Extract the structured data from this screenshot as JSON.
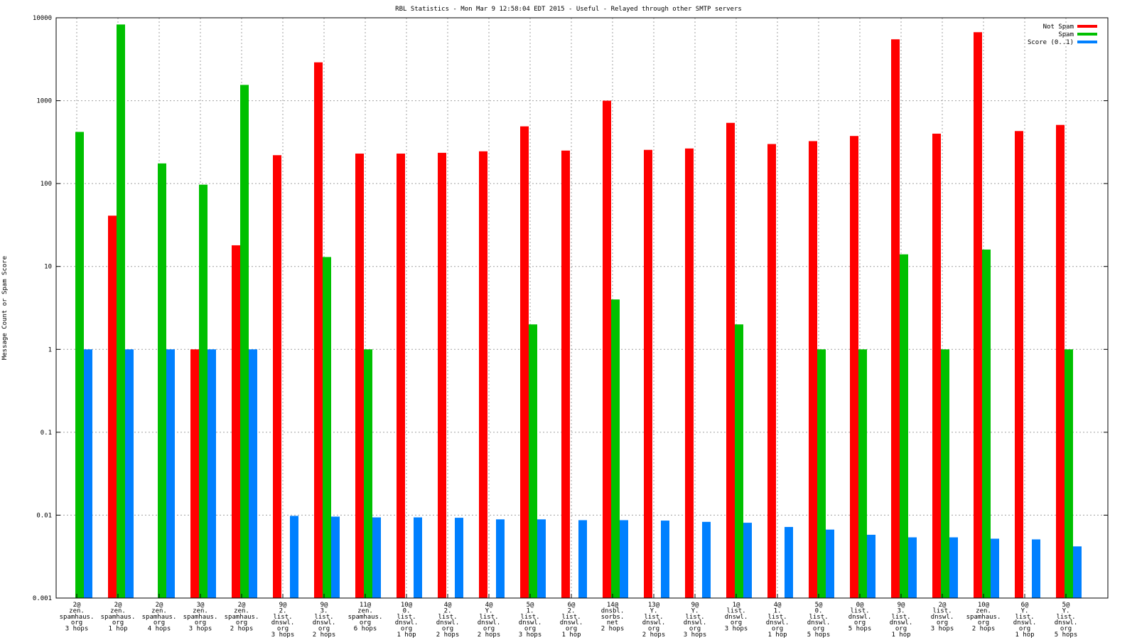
{
  "chart_data": {
    "type": "bar",
    "title": "RBL Statistics - Mon Mar  9 12:58:04 EDT 2015 - Useful - Relayed through other SMTP servers",
    "xlabel": "",
    "ylabel": "Message Count or Spam Score",
    "yscale": "log",
    "ylim": [
      0.001,
      10000
    ],
    "yticks": [
      "0.001",
      "0.01",
      "0.1",
      "1",
      "10",
      "100",
      "1000",
      "10000"
    ],
    "grid": true,
    "legend_position": "top-right",
    "categories": [
      [
        "2@",
        "zen.",
        "spamhaus.",
        "org",
        "3 hops"
      ],
      [
        "2@",
        "zen.",
        "spamhaus.",
        "org",
        "1 hop"
      ],
      [
        "2@",
        "zen.",
        "spamhaus.",
        "org",
        "4 hops"
      ],
      [
        "3@",
        "zen.",
        "spamhaus.",
        "org",
        "3 hops"
      ],
      [
        "2@",
        "zen.",
        "spamhaus.",
        "org",
        "2 hops"
      ],
      [
        "9@",
        "2.",
        "list.",
        "dnswl.",
        "org",
        "3 hops"
      ],
      [
        "9@",
        "3.",
        "list.",
        "dnswl.",
        "org",
        "2 hops"
      ],
      [
        "11@",
        "zen.",
        "spamhaus.",
        "org",
        "6 hops"
      ],
      [
        "10@",
        "0.",
        "list.",
        "dnswl.",
        "org",
        "1 hop"
      ],
      [
        "4@",
        "2.",
        "list.",
        "dnswl.",
        "org",
        "2 hops"
      ],
      [
        "4@",
        "Y.",
        "list.",
        "dnswl.",
        "org",
        "2 hops"
      ],
      [
        "5@",
        "1.",
        "list.",
        "dnswl.",
        "org",
        "3 hops"
      ],
      [
        "6@",
        "2.",
        "list.",
        "dnswl.",
        "org",
        "1 hop"
      ],
      [
        "14@",
        "dnsbl.",
        "sorbs.",
        "net",
        "2 hops"
      ],
      [
        "13@",
        "Y.",
        "list.",
        "dnswl.",
        "org",
        "2 hops"
      ],
      [
        "9@",
        "Y.",
        "list.",
        "dnswl.",
        "org",
        "3 hops"
      ],
      [
        "1@",
        "list.",
        "dnswl.",
        "org",
        "3 hops"
      ],
      [
        "4@",
        "1.",
        "list.",
        "dnswl.",
        "org",
        "1 hop"
      ],
      [
        "5@",
        "0.",
        "list.",
        "dnswl.",
        "org",
        "5 hops"
      ],
      [
        "0@",
        "list.",
        "dnswl.",
        "org",
        "5 hops"
      ],
      [
        "9@",
        "3.",
        "list.",
        "dnswl.",
        "org",
        "1 hop"
      ],
      [
        "2@",
        "list.",
        "dnswl.",
        "org",
        "3 hops"
      ],
      [
        "10@",
        "zen.",
        "spamhaus.",
        "org",
        "2 hops"
      ],
      [
        "6@",
        "Y.",
        "list.",
        "dnswl.",
        "org",
        "1 hop"
      ],
      [
        "5@",
        "Y.",
        "list.",
        "dnswl.",
        "org",
        "5 hops"
      ]
    ],
    "series": [
      {
        "name": "Not Spam",
        "color": "#ff0000",
        "values": [
          null,
          41,
          null,
          1,
          18,
          220,
          2900,
          230,
          230,
          235,
          245,
          490,
          250,
          1000,
          255,
          265,
          540,
          300,
          325,
          375,
          5500,
          400,
          6700,
          430,
          510
        ]
      },
      {
        "name": "Spam",
        "color": "#00c000",
        "values": [
          420,
          8300,
          175,
          97,
          1550,
          null,
          13,
          1,
          null,
          null,
          null,
          2,
          null,
          4,
          null,
          null,
          2,
          null,
          1,
          1,
          14,
          1,
          16,
          null,
          1
        ]
      },
      {
        "name": "Score (0..1)",
        "color": "#0080ff",
        "values": [
          1,
          1,
          1,
          1,
          1,
          0.0098,
          0.0096,
          0.0094,
          0.0094,
          0.0093,
          0.0089,
          0.0089,
          0.0087,
          0.0087,
          0.0086,
          0.0083,
          0.0081,
          0.0072,
          0.0067,
          0.0058,
          0.0054,
          0.0054,
          0.0052,
          0.0051,
          0.0042
        ]
      }
    ]
  }
}
